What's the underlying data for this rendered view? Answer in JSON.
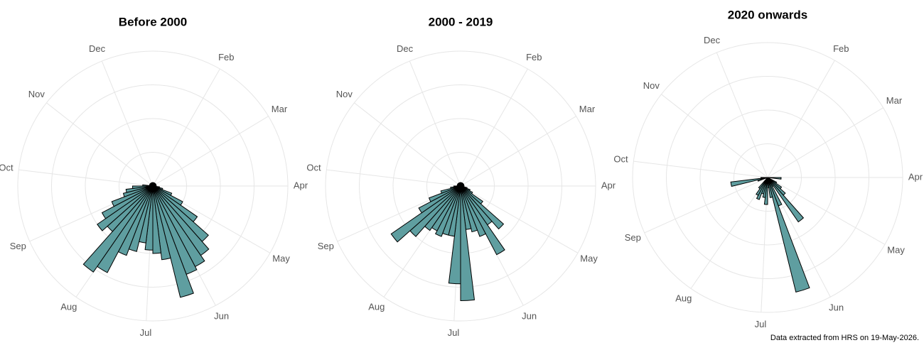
{
  "chart_data": [
    {
      "type": "polar_bar",
      "title": "Before 2000",
      "color": "#5f9ea0",
      "x": [
        0,
        1,
        2,
        3,
        4,
        5,
        6,
        7,
        8,
        9,
        10,
        11,
        12,
        13,
        14,
        15,
        16,
        17,
        18,
        19,
        20,
        21,
        22,
        23,
        24,
        25,
        26,
        27,
        28,
        29,
        30,
        31,
        32,
        33,
        34,
        35,
        36,
        37,
        38,
        39,
        40,
        41,
        42,
        43,
        44,
        45,
        46,
        47,
        48,
        49,
        50,
        51
      ],
      "values": [
        1,
        1,
        1,
        1,
        1,
        1,
        1,
        1,
        1,
        1,
        1,
        1,
        1,
        1,
        2,
        3,
        6,
        10,
        16,
        22,
        25,
        27,
        28,
        34,
        22,
        20,
        19,
        17,
        20,
        22,
        29,
        31,
        18,
        20,
        17,
        13,
        9,
        8,
        6,
        3,
        1,
        1,
        1,
        1,
        1,
        1,
        1,
        1,
        1,
        1,
        1,
        1
      ],
      "xlim": [
        0,
        52
      ],
      "xticks": [
        {
          "value": 4.3,
          "label": "Feb"
        },
        {
          "value": 8.5,
          "label": "Mar"
        },
        {
          "value": 13,
          "label": "Apr"
        },
        {
          "value": 17.3,
          "label": "May"
        },
        {
          "value": 22,
          "label": "Jun"
        },
        {
          "value": 26.4,
          "label": "Jul"
        },
        {
          "value": 31,
          "label": "Aug"
        },
        {
          "value": 35.5,
          "label": "Sep"
        },
        {
          "value": 40,
          "label": "Oct"
        },
        {
          "value": 44.5,
          "label": "Nov"
        },
        {
          "value": 48.8,
          "label": "Dec"
        }
      ],
      "ylim": [
        0,
        40
      ],
      "yticks": [
        10,
        20,
        30,
        40
      ],
      "grid": true
    },
    {
      "type": "polar_bar",
      "title": "2000 - 2019",
      "color": "#5f9ea0",
      "x": [
        0,
        1,
        2,
        3,
        4,
        5,
        6,
        7,
        8,
        9,
        10,
        11,
        12,
        13,
        14,
        15,
        16,
        17,
        18,
        19,
        20,
        21,
        22,
        23,
        24,
        25,
        26,
        27,
        28,
        29,
        30,
        31,
        32,
        33,
        34,
        35,
        36,
        37,
        38,
        39,
        40,
        41,
        42,
        43,
        44,
        45,
        46,
        47,
        48,
        49,
        50,
        51
      ],
      "values": [
        1,
        1,
        1,
        1,
        1,
        1,
        1,
        1,
        1,
        1,
        1,
        1,
        1,
        1,
        1,
        2,
        3,
        4,
        8,
        17,
        14,
        23,
        16,
        14,
        13,
        34,
        29,
        15,
        15,
        16,
        15,
        16,
        20,
        25,
        14,
        10,
        6,
        3,
        2,
        1,
        1,
        1,
        1,
        1,
        1,
        1,
        1,
        1,
        1,
        1,
        1,
        1
      ],
      "xlim": [
        0,
        52
      ],
      "xticks": [
        {
          "value": 4.3,
          "label": "Feb"
        },
        {
          "value": 8.5,
          "label": "Mar"
        },
        {
          "value": 13,
          "label": "Apr"
        },
        {
          "value": 17.3,
          "label": "May"
        },
        {
          "value": 22,
          "label": "Jun"
        },
        {
          "value": 26.4,
          "label": "Jul"
        },
        {
          "value": 31,
          "label": "Aug"
        },
        {
          "value": 35.5,
          "label": "Sep"
        },
        {
          "value": 40,
          "label": "Oct"
        },
        {
          "value": 44.5,
          "label": "Nov"
        },
        {
          "value": 48.8,
          "label": "Dec"
        }
      ],
      "ylim": [
        0,
        40
      ],
      "yticks": [
        10,
        20,
        30,
        40
      ],
      "grid": true
    },
    {
      "type": "polar_bar",
      "title": "2020 onwards",
      "color": "#5f9ea0",
      "x": [
        0,
        1,
        2,
        3,
        4,
        5,
        6,
        7,
        8,
        9,
        10,
        11,
        12,
        13,
        14,
        15,
        16,
        17,
        18,
        19,
        20,
        21,
        22,
        23,
        24,
        25,
        26,
        27,
        28,
        29,
        30,
        31,
        32,
        33,
        34,
        35,
        36,
        37,
        38,
        39,
        40,
        41,
        42,
        43,
        44,
        45,
        46,
        47,
        48,
        49,
        50,
        51
      ],
      "values": [
        0,
        0,
        0,
        0,
        0,
        0,
        0,
        0,
        0,
        0,
        0,
        0,
        0,
        4,
        0,
        0,
        0,
        3,
        5,
        7,
        16,
        3,
        9,
        35,
        6,
        3,
        8,
        6,
        5,
        7,
        6,
        4,
        0,
        0,
        0,
        0,
        3,
        11,
        2,
        0,
        0,
        0,
        0,
        0,
        0,
        0,
        0,
        0,
        0,
        0,
        0,
        0
      ],
      "xlim": [
        0,
        52
      ],
      "xticks": [
        {
          "value": 4.3,
          "label": "Feb"
        },
        {
          "value": 8.5,
          "label": "Mar"
        },
        {
          "value": 13,
          "label": "Apr"
        },
        {
          "value": 17.3,
          "label": "May"
        },
        {
          "value": 22,
          "label": "Jun"
        },
        {
          "value": 26.4,
          "label": "Jul"
        },
        {
          "value": 31,
          "label": "Aug"
        },
        {
          "value": 35.5,
          "label": "Sep"
        },
        {
          "value": 40,
          "label": "Oct"
        },
        {
          "value": 44.5,
          "label": "Nov"
        },
        {
          "value": 48.8,
          "label": "Dec"
        }
      ],
      "ylim": [
        0,
        40
      ],
      "yticks": [
        10,
        20,
        30,
        40
      ],
      "grid": true
    }
  ],
  "caption": "Data extracted from HRS on 19-May-2026."
}
